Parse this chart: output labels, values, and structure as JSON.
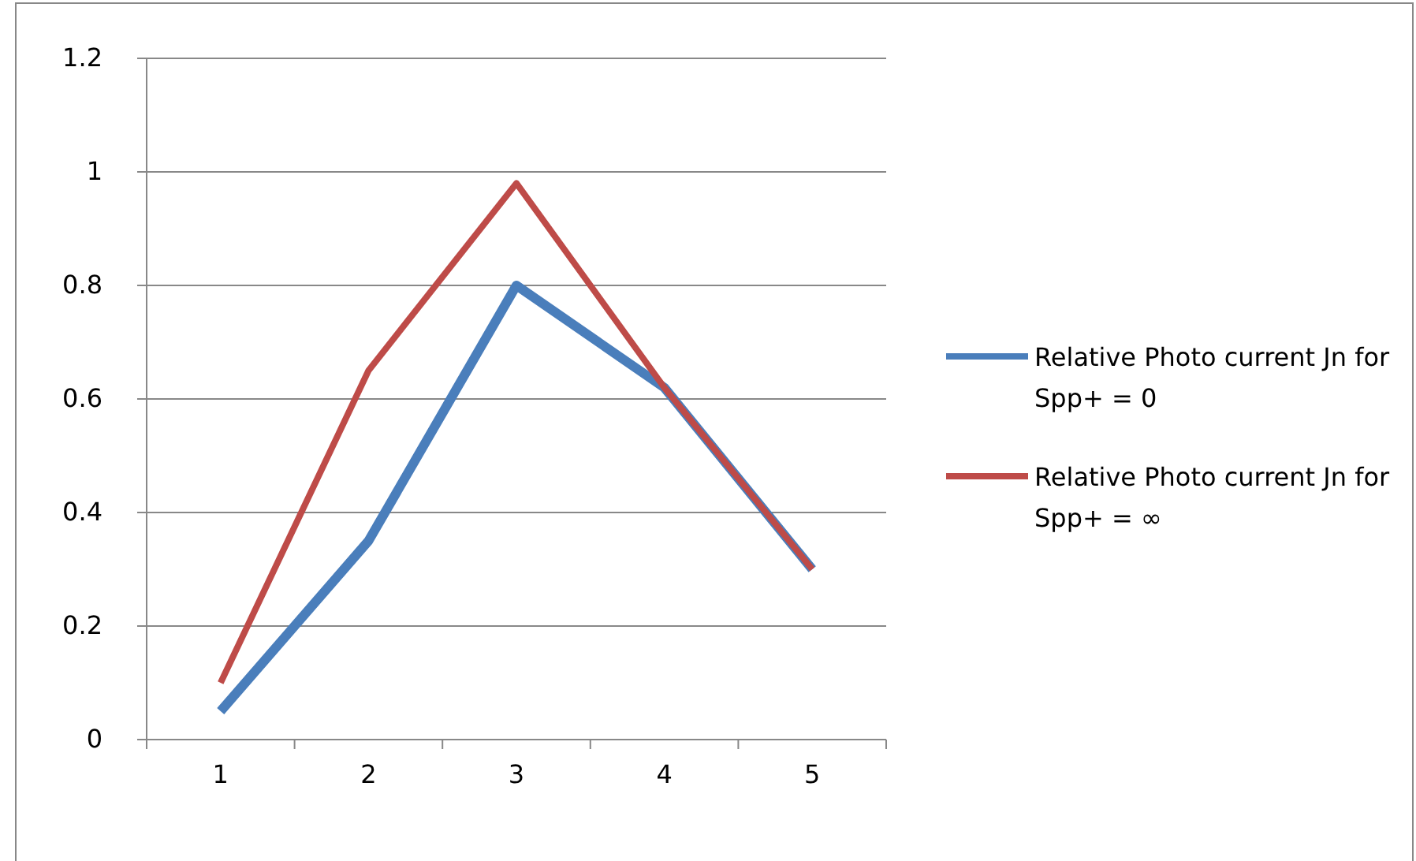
{
  "chart_data": {
    "type": "line",
    "categories": [
      "1",
      "2",
      "3",
      "4",
      "5"
    ],
    "series": [
      {
        "name": "Relative Photo current Jn for Spp+ = 0",
        "color": "#4a7ebb",
        "values": [
          0.05,
          0.35,
          0.8,
          0.62,
          0.3
        ]
      },
      {
        "name": "Relative Photo current Jn for Spp+ = ∞",
        "color": "#be4b48",
        "values": [
          0.1,
          0.65,
          0.98,
          0.62,
          0.3
        ]
      }
    ],
    "ylim": [
      0,
      1.2
    ],
    "yticks": [
      0,
      0.2,
      0.4,
      0.6,
      0.8,
      1,
      1.2
    ],
    "grid": "y",
    "legend": "right",
    "marker": "none",
    "line_style": "solid"
  }
}
